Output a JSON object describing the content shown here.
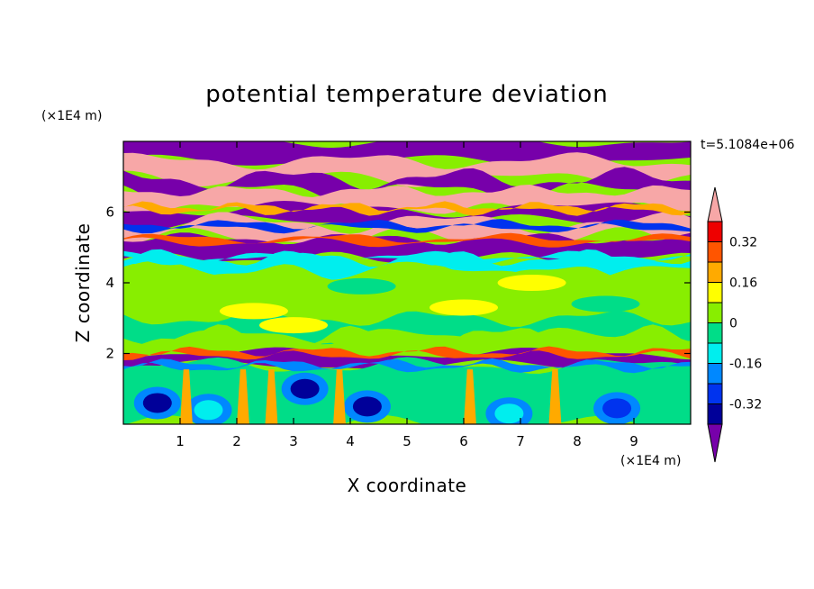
{
  "chart_data": {
    "type": "heatmap",
    "title": "potential temperature deviation",
    "time_label": "t=5.1084e+06",
    "xlabel": "X coordinate",
    "ylabel": "Z coordinate",
    "x_unit": "(×1E4 m)",
    "y_unit": "(×1E4 m)",
    "xlim": [
      0,
      10
    ],
    "ylim": [
      0,
      8
    ],
    "x_ticks": [
      "1",
      "2",
      "3",
      "4",
      "5",
      "6",
      "7",
      "8",
      "9"
    ],
    "y_ticks": [
      "2",
      "4",
      "6"
    ],
    "colorbar": {
      "levels": [
        -0.4,
        -0.32,
        -0.24,
        -0.16,
        -0.08,
        0,
        0.08,
        0.16,
        0.24,
        0.32,
        0.4
      ],
      "colors": [
        "#7700aa",
        "#000099",
        "#0033ee",
        "#0088ff",
        "#00eeee",
        "#00dd88",
        "#88ee00",
        "#ffff00",
        "#ffaa00",
        "#ff5500",
        "#ee0000",
        "#f7a7a7"
      ],
      "labels": [
        "0.32",
        "0.16",
        "0",
        "-0.16",
        "-0.32"
      ],
      "extend": "both"
    },
    "bands": [
      {
        "z": [
          7.45,
          8.0
        ],
        "class": "#7700aa"
      },
      {
        "z": [
          6.95,
          7.45
        ],
        "class": "#f7a7a7"
      },
      {
        "z": [
          6.6,
          6.95
        ],
        "class": "#7700aa"
      },
      {
        "z": [
          6.1,
          6.6
        ],
        "class": "#f7a7a7"
      },
      {
        "z": [
          5.7,
          6.1
        ],
        "class": "#7700aa"
      },
      {
        "z": [
          5.25,
          5.7
        ],
        "class": "#f7a7a7"
      },
      {
        "z": [
          4.7,
          5.25
        ],
        "class": "#7700aa"
      },
      {
        "z": [
          4.3,
          4.7
        ],
        "class": "#00eeee"
      },
      {
        "z": [
          3.6,
          4.3
        ],
        "class": "#88ee00"
      },
      {
        "z": [
          3.0,
          3.6
        ],
        "class": "#88ee00"
      },
      {
        "z": [
          2.5,
          3.0
        ],
        "class": "#00dd88"
      },
      {
        "z": [
          2.0,
          2.5
        ],
        "class": "#88ee00"
      },
      {
        "z": [
          1.65,
          2.0
        ],
        "class": "#7700aa"
      },
      {
        "z": [
          0,
          1.65
        ],
        "class": "#00dd88"
      }
    ]
  }
}
